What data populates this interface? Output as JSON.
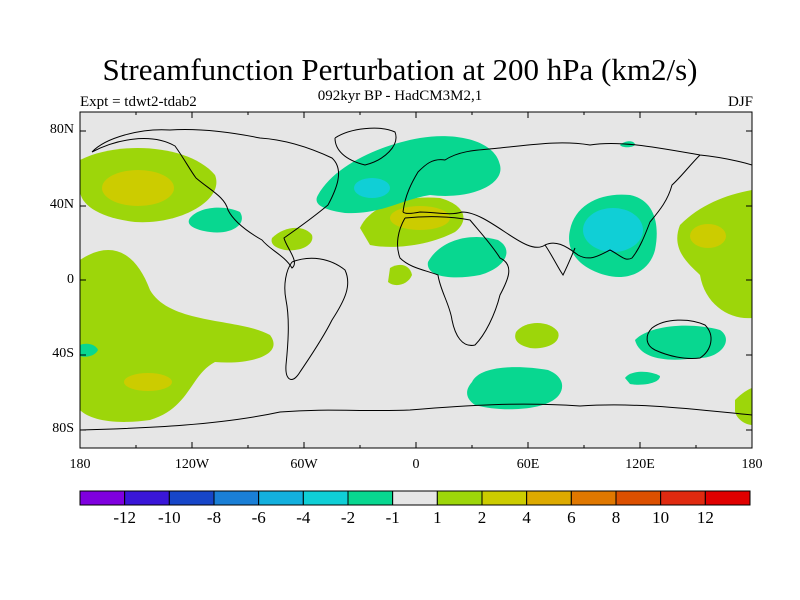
{
  "title": "Streamfunction Perturbation at 200 hPa (km2/s)",
  "left_label": "Expt = tdwt2-tdab2",
  "center_label": "092kyr BP - HadCM3M2,1",
  "right_label": "DJF",
  "map": {
    "projection": "cylindrical equidistant",
    "lon_range": [
      -180,
      180
    ],
    "lat_range": [
      -90,
      90
    ],
    "y_ticks": [
      "80N",
      "40N",
      "0",
      "40S",
      "80S"
    ],
    "x_ticks": [
      "180",
      "120W",
      "60W",
      "0",
      "60E",
      "120E",
      "180"
    ],
    "background_color": "#e6e6e6"
  },
  "colorbar": {
    "labels": [
      "-12",
      "-10",
      "-8",
      "-6",
      "-4",
      "-2",
      "-1",
      "1",
      "2",
      "4",
      "6",
      "8",
      "10",
      "12"
    ],
    "colors": [
      "#7f00df",
      "#3a16d8",
      "#1746c8",
      "#1a7fd6",
      "#13b0de",
      "#10cfd6",
      "#08d790",
      "#e6e6e6",
      "#9dd60a",
      "#cccc00",
      "#ddaa00",
      "#e07800",
      "#dc5000",
      "#e02a10",
      "#e00000"
    ]
  }
}
